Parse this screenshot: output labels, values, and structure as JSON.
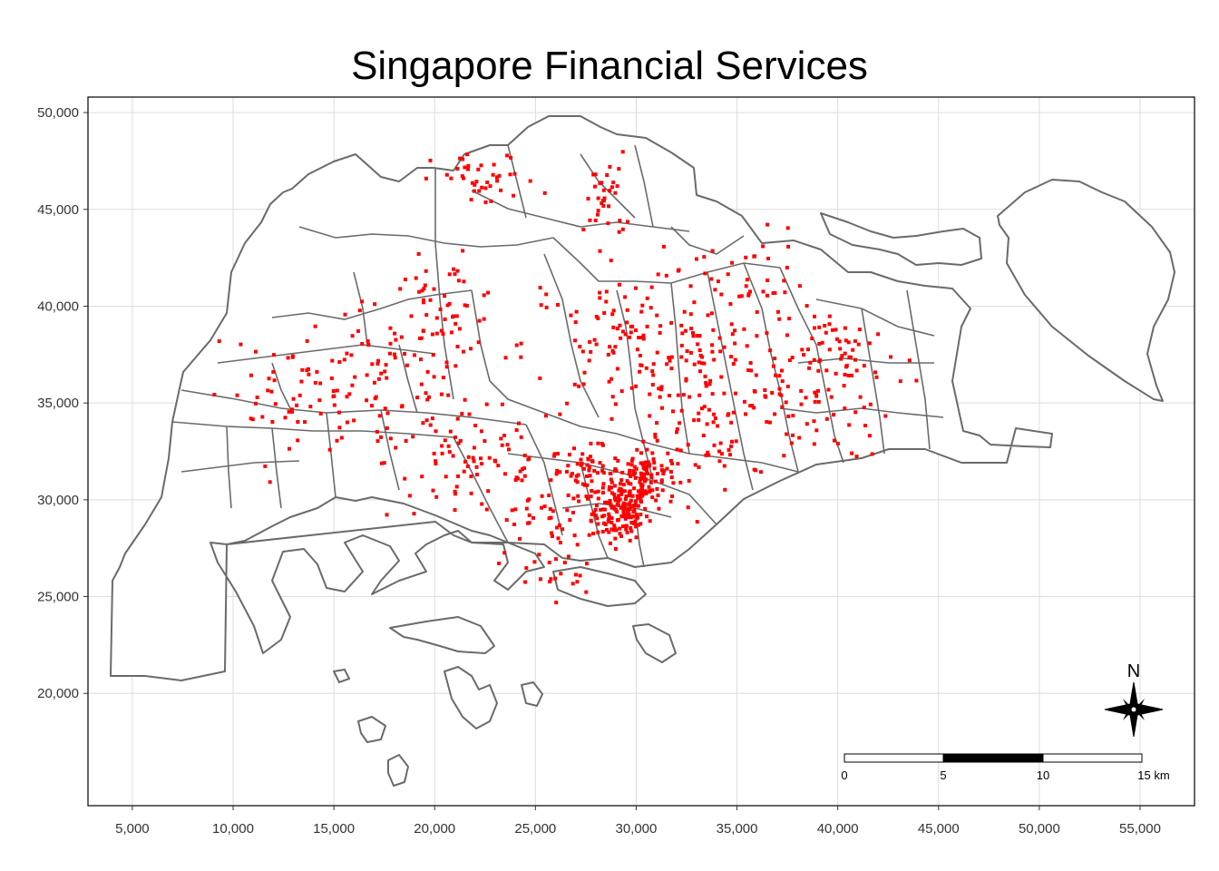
{
  "title": "Singapore Financial Services",
  "chart_data": {
    "type": "map",
    "title": "Singapore Financial Services",
    "xlim": [
      2800,
      57700
    ],
    "ylim": [
      14200,
      50800
    ],
    "x_ticks": [
      5000,
      10000,
      15000,
      20000,
      25000,
      30000,
      35000,
      40000,
      45000,
      50000,
      55000
    ],
    "x_tick_labels": [
      "5,000",
      "10,000",
      "15,000",
      "20,000",
      "25,000",
      "30,000",
      "35,000",
      "40,000",
      "45,000",
      "50,000",
      "55,000"
    ],
    "y_ticks": [
      20000,
      25000,
      30000,
      35000,
      40000,
      45000,
      50000
    ],
    "y_tick_labels": [
      "20,000",
      "25,000",
      "30,000",
      "35,000",
      "40,000",
      "45,000",
      "50,000"
    ],
    "grid": true,
    "point_color": "#ff0000",
    "boundary_color": "#6a6a6a",
    "clusters": [
      {
        "x": 29200,
        "y": 29300,
        "sx": 700,
        "sy": 700,
        "n": 140
      },
      {
        "x": 30400,
        "y": 31200,
        "sx": 800,
        "sy": 800,
        "n": 120
      },
      {
        "x": 27500,
        "y": 31500,
        "sx": 900,
        "sy": 600,
        "n": 50
      },
      {
        "x": 22000,
        "y": 32000,
        "sx": 2200,
        "sy": 1500,
        "n": 80
      },
      {
        "x": 17500,
        "y": 36000,
        "sx": 2500,
        "sy": 2000,
        "n": 100
      },
      {
        "x": 20500,
        "y": 40000,
        "sx": 1500,
        "sy": 1200,
        "n": 50
      },
      {
        "x": 29500,
        "y": 38000,
        "sx": 2500,
        "sy": 1800,
        "n": 100
      },
      {
        "x": 33500,
        "y": 34000,
        "sx": 2500,
        "sy": 1800,
        "n": 90
      },
      {
        "x": 38000,
        "y": 35500,
        "sx": 2500,
        "sy": 1700,
        "n": 80
      },
      {
        "x": 35000,
        "y": 41000,
        "sx": 1800,
        "sy": 1500,
        "n": 50
      },
      {
        "x": 22500,
        "y": 46500,
        "sx": 1300,
        "sy": 700,
        "n": 40
      },
      {
        "x": 28500,
        "y": 45500,
        "sx": 500,
        "sy": 1200,
        "n": 35
      },
      {
        "x": 25500,
        "y": 29000,
        "sx": 1500,
        "sy": 1200,
        "n": 50
      },
      {
        "x": 12500,
        "y": 35500,
        "sx": 2000,
        "sy": 1200,
        "n": 40
      },
      {
        "x": 26500,
        "y": 26000,
        "sx": 900,
        "sy": 500,
        "n": 15
      },
      {
        "x": 40500,
        "y": 37800,
        "sx": 1200,
        "sy": 800,
        "n": 35
      },
      {
        "x": 33000,
        "y": 37500,
        "sx": 1500,
        "sy": 1000,
        "n": 40
      }
    ],
    "scale_bar": {
      "labels": [
        "0",
        "5",
        "10",
        "15 km"
      ]
    },
    "north_arrow": {
      "label": "N"
    }
  }
}
